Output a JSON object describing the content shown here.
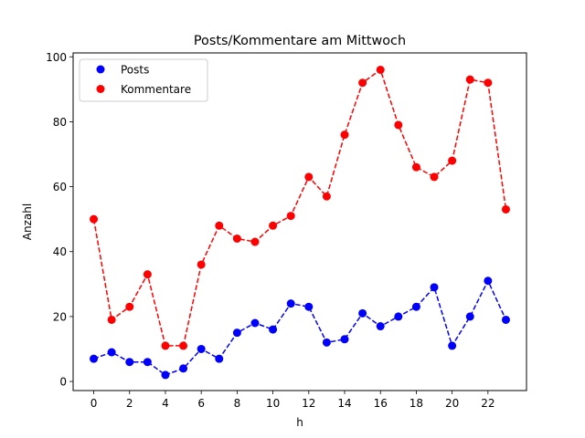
{
  "chart_data": {
    "type": "line",
    "title": "Posts/Kommentare am Mittwoch",
    "xlabel": "h",
    "ylabel": "Anzahl",
    "x": [
      0,
      1,
      2,
      3,
      4,
      5,
      6,
      7,
      8,
      9,
      10,
      11,
      12,
      13,
      14,
      15,
      16,
      17,
      18,
      19,
      20,
      21,
      22,
      23
    ],
    "xticks": [
      0,
      2,
      4,
      6,
      8,
      10,
      12,
      14,
      16,
      18,
      20,
      22
    ],
    "yticks": [
      0,
      20,
      40,
      60,
      80,
      100
    ],
    "xlim": [
      -1.15,
      24.15
    ],
    "ylim": [
      -2.8,
      101.2
    ],
    "grid": false,
    "legend_position": "upper left",
    "series": [
      {
        "name": "Posts",
        "color": "#0000ff",
        "style": "dashed",
        "marker": "circle",
        "values": [
          7,
          9,
          6,
          6,
          2,
          4,
          10,
          7,
          15,
          18,
          16,
          24,
          23,
          12,
          13,
          21,
          17,
          20,
          23,
          29,
          11,
          20,
          31,
          19
        ]
      },
      {
        "name": "Kommentare",
        "color": "#ff0000",
        "style": "dashed",
        "marker": "circle",
        "values": [
          50,
          19,
          23,
          33,
          11,
          11,
          36,
          48,
          44,
          43,
          48,
          51,
          63,
          57,
          76,
          92,
          96,
          79,
          66,
          63,
          68,
          93,
          92,
          53
        ]
      }
    ]
  }
}
